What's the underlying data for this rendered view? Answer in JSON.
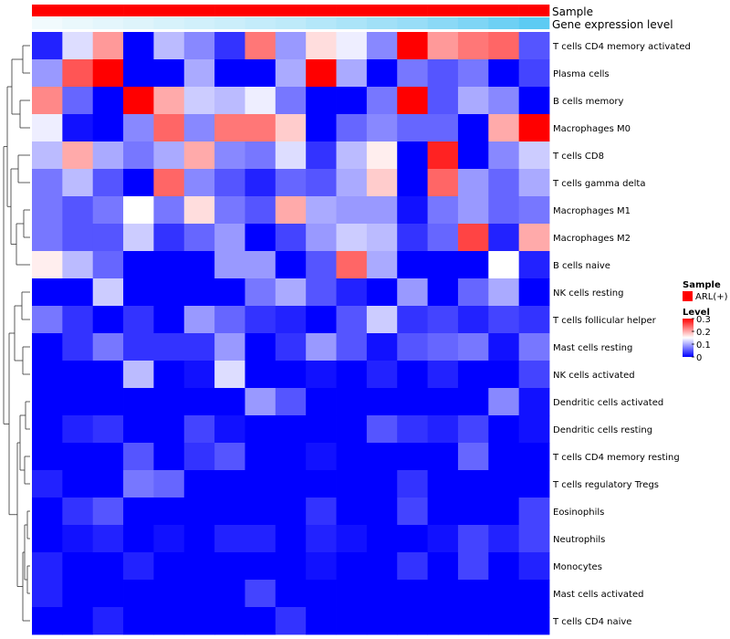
{
  "chart_data": {
    "type": "heatmap",
    "title": "",
    "annotation_tracks": [
      {
        "label": "Sample",
        "kind": "categorical",
        "color": "#ff0000"
      },
      {
        "label": "Gene expression level",
        "kind": "gradient",
        "color_low": "#f4fbfd",
        "color_high": "#55c8f2"
      }
    ],
    "rows": [
      "T cells CD4 memory activated",
      "Plasma cells",
      "B cells memory",
      "Macrophages M0",
      "T cells CD8",
      "T cells gamma delta",
      "Macrophages M1",
      "Macrophages M2",
      "B cells naive",
      "NK cells resting",
      "T cells follicular helper",
      "Mast cells resting",
      "NK cells activated",
      "Dendritic cells activated",
      "Dendritic cells resting",
      "T cells CD4 memory resting",
      "T cells regulatory  Tregs",
      "Eosinophils",
      "Neutrophils",
      "Monocytes",
      "Mast cells activated",
      "T cells CD4 naive"
    ],
    "values": [
      [
        0.02,
        0.13,
        0.21,
        0.0,
        0.11,
        0.08,
        0.03,
        0.23,
        0.09,
        0.17,
        0.14,
        0.08,
        0.3,
        0.21,
        0.23,
        0.24,
        0.05
      ],
      [
        0.09,
        0.25,
        0.3,
        0.0,
        0.0,
        0.1,
        0.0,
        0.0,
        0.1,
        0.3,
        0.1,
        0.0,
        0.07,
        0.05,
        0.07,
        0.0,
        0.04
      ],
      [
        0.22,
        0.06,
        0.0,
        0.3,
        0.2,
        0.12,
        0.11,
        0.14,
        0.07,
        0.0,
        0.0,
        0.07,
        0.3,
        0.05,
        0.1,
        0.08,
        0.0
      ],
      [
        0.14,
        0.01,
        0.0,
        0.08,
        0.24,
        0.08,
        0.23,
        0.23,
        0.18,
        0.0,
        0.06,
        0.08,
        0.06,
        0.06,
        0.0,
        0.2,
        0.3
      ],
      [
        0.11,
        0.2,
        0.1,
        0.07,
        0.1,
        0.2,
        0.08,
        0.07,
        0.13,
        0.03,
        0.11,
        0.16,
        0.0,
        0.28,
        0.0,
        0.08,
        0.12
      ],
      [
        0.07,
        0.11,
        0.05,
        0.0,
        0.24,
        0.08,
        0.05,
        0.02,
        0.06,
        0.05,
        0.1,
        0.18,
        0.0,
        0.24,
        0.09,
        0.06,
        0.1
      ],
      [
        0.07,
        0.05,
        0.07,
        0.15,
        0.07,
        0.17,
        0.07,
        0.05,
        0.2,
        0.1,
        0.09,
        0.09,
        0.01,
        0.07,
        0.09,
        0.06,
        0.07
      ],
      [
        0.07,
        0.05,
        0.05,
        0.12,
        0.03,
        0.06,
        0.09,
        0.0,
        0.04,
        0.09,
        0.12,
        0.11,
        0.03,
        0.06,
        0.26,
        0.02,
        0.2
      ],
      [
        0.16,
        0.11,
        0.06,
        0.0,
        0.0,
        0.0,
        0.09,
        0.09,
        0.0,
        0.05,
        0.24,
        0.1,
        0.0,
        0.0,
        0.0,
        0.15,
        0.02
      ],
      [
        0.0,
        0.0,
        0.12,
        0.0,
        0.0,
        0.0,
        0.0,
        0.07,
        0.1,
        0.05,
        0.02,
        0.0,
        0.09,
        0.0,
        0.06,
        0.1,
        0.0
      ],
      [
        0.07,
        0.03,
        0.0,
        0.03,
        0.0,
        0.09,
        0.06,
        0.03,
        0.02,
        0.0,
        0.05,
        0.12,
        0.03,
        0.04,
        0.02,
        0.04,
        0.03
      ],
      [
        0.0,
        0.03,
        0.07,
        0.03,
        0.03,
        0.03,
        0.09,
        0.0,
        0.03,
        0.09,
        0.05,
        0.01,
        0.05,
        0.06,
        0.07,
        0.01,
        0.07
      ],
      [
        0.0,
        0.0,
        0.0,
        0.11,
        0.0,
        0.01,
        0.13,
        0.0,
        0.0,
        0.01,
        0.0,
        0.02,
        0.0,
        0.02,
        0.0,
        0.0,
        0.04
      ],
      [
        0.0,
        0.0,
        0.0,
        0.0,
        0.0,
        0.0,
        0.0,
        0.09,
        0.05,
        0.0,
        0.0,
        0.0,
        0.0,
        0.0,
        0.0,
        0.08,
        0.01
      ],
      [
        0.0,
        0.02,
        0.03,
        0.0,
        0.0,
        0.04,
        0.01,
        0.0,
        0.0,
        0.0,
        0.0,
        0.05,
        0.03,
        0.02,
        0.04,
        0.0,
        0.01
      ],
      [
        0.0,
        0.0,
        0.0,
        0.05,
        0.0,
        0.03,
        0.05,
        0.0,
        0.0,
        0.01,
        0.0,
        0.0,
        0.0,
        0.0,
        0.06,
        0.0,
        0.0
      ],
      [
        0.02,
        0.0,
        0.0,
        0.07,
        0.06,
        0.0,
        0.0,
        0.0,
        0.0,
        0.0,
        0.0,
        0.0,
        0.03,
        0.0,
        0.0,
        0.0,
        0.0
      ],
      [
        0.0,
        0.03,
        0.05,
        0.0,
        0.0,
        0.0,
        0.0,
        0.0,
        0.0,
        0.03,
        0.0,
        0.0,
        0.04,
        0.0,
        0.0,
        0.0,
        0.04
      ],
      [
        0.0,
        0.01,
        0.02,
        0.0,
        0.01,
        0.0,
        0.02,
        0.02,
        0.0,
        0.02,
        0.01,
        0.0,
        0.0,
        0.01,
        0.04,
        0.02,
        0.04
      ],
      [
        0.02,
        0.0,
        0.0,
        0.02,
        0.0,
        0.0,
        0.0,
        0.0,
        0.0,
        0.01,
        0.0,
        0.0,
        0.03,
        0.0,
        0.04,
        0.0,
        0.02
      ],
      [
        0.02,
        0.0,
        0.0,
        0.0,
        0.0,
        0.0,
        0.0,
        0.04,
        0.0,
        0.0,
        0.0,
        0.0,
        0.0,
        0.0,
        0.0,
        0.0,
        0.0
      ],
      [
        0.0,
        0.0,
        0.02,
        0.0,
        0.0,
        0.0,
        0.0,
        0.0,
        0.03,
        0.0,
        0.0,
        0.0,
        0.0,
        0.0,
        0.0,
        0.0,
        0.0
      ]
    ],
    "gene_expression_level": [
      0.02,
      0.06,
      0.1,
      0.14,
      0.18,
      0.22,
      0.26,
      0.3,
      0.34,
      0.4,
      0.46,
      0.52,
      0.58,
      0.66,
      0.74,
      0.84,
      0.95
    ],
    "color_scale": {
      "min": 0,
      "max": 0.3,
      "low": "#0000ff",
      "mid": "#ffffff",
      "high": "#ff0000",
      "mid_value": 0.15
    },
    "legend": {
      "position": "right",
      "sample_title": "Sample",
      "sample_entry": "ARL(+)",
      "sample_color": "#ff0000",
      "level_title": "Level",
      "ticks": [
        "0.3",
        "0.2",
        "0.1",
        "0"
      ],
      "tick_values": [
        0.3,
        0.2,
        0.1,
        0
      ]
    },
    "dendrogram": "rows"
  }
}
